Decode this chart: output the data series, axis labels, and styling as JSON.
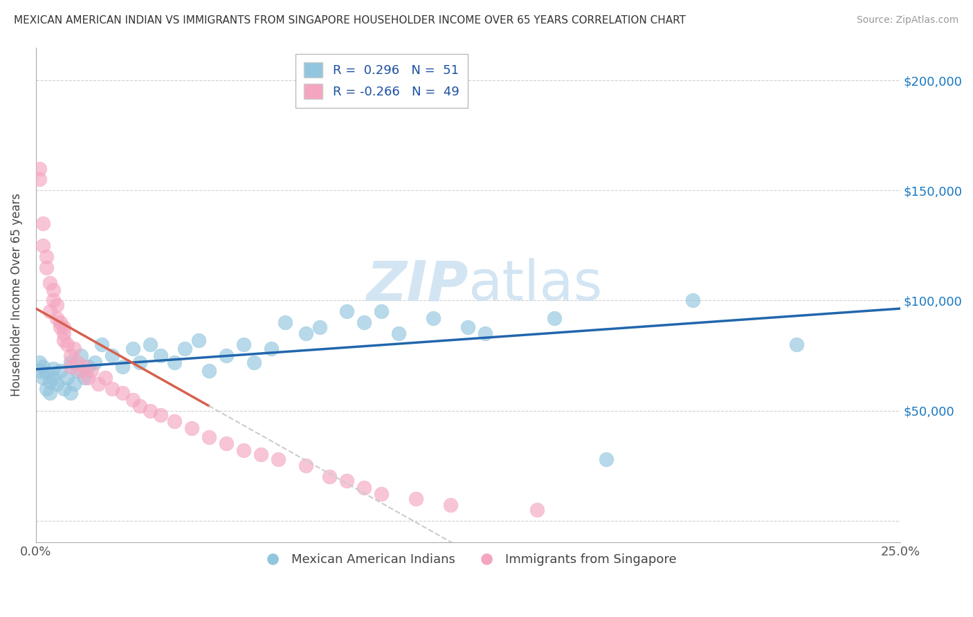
{
  "title": "MEXICAN AMERICAN INDIAN VS IMMIGRANTS FROM SINGAPORE HOUSEHOLDER INCOME OVER 65 YEARS CORRELATION CHART",
  "source": "Source: ZipAtlas.com",
  "ylabel": "Householder Income Over 65 years",
  "xmin": 0.0,
  "xmax": 0.25,
  "ymin": -10000,
  "ymax": 215000,
  "yticks": [
    0,
    50000,
    100000,
    150000,
    200000
  ],
  "ytick_labels": [
    "",
    "$50,000",
    "$100,000",
    "$150,000",
    "$200,000"
  ],
  "legend_blue_r": "0.296",
  "legend_blue_n": "51",
  "legend_pink_r": "-0.266",
  "legend_pink_n": "49",
  "legend1_label": "Mexican American Indians",
  "legend2_label": "Immigrants from Singapore",
  "blue_color": "#92c5de",
  "pink_color": "#f4a6c0",
  "blue_line_color": "#2166ac",
  "pink_line_color": "#d6604d",
  "pink_dash_color": "#cccccc",
  "watermark_color": "#c8dff0",
  "blue_scatter_x": [
    0.001,
    0.001,
    0.002,
    0.002,
    0.003,
    0.003,
    0.004,
    0.004,
    0.005,
    0.005,
    0.006,
    0.007,
    0.008,
    0.009,
    0.01,
    0.01,
    0.011,
    0.012,
    0.013,
    0.014,
    0.015,
    0.017,
    0.019,
    0.022,
    0.025,
    0.028,
    0.03,
    0.033,
    0.036,
    0.04,
    0.043,
    0.047,
    0.05,
    0.055,
    0.06,
    0.063,
    0.068,
    0.072,
    0.078,
    0.082,
    0.09,
    0.095,
    0.1,
    0.105,
    0.115,
    0.125,
    0.13,
    0.15,
    0.165,
    0.19,
    0.22
  ],
  "blue_scatter_y": [
    68000,
    72000,
    65000,
    70000,
    60000,
    67000,
    58000,
    63000,
    65000,
    69000,
    62000,
    68000,
    60000,
    65000,
    72000,
    58000,
    62000,
    68000,
    75000,
    65000,
    70000,
    72000,
    80000,
    75000,
    70000,
    78000,
    72000,
    80000,
    75000,
    72000,
    78000,
    82000,
    68000,
    75000,
    80000,
    72000,
    78000,
    90000,
    85000,
    88000,
    95000,
    90000,
    95000,
    85000,
    92000,
    88000,
    85000,
    92000,
    28000,
    100000,
    80000
  ],
  "pink_scatter_x": [
    0.001,
    0.001,
    0.002,
    0.002,
    0.003,
    0.003,
    0.004,
    0.005,
    0.005,
    0.006,
    0.006,
    0.007,
    0.007,
    0.008,
    0.008,
    0.009,
    0.01,
    0.01,
    0.011,
    0.012,
    0.013,
    0.014,
    0.015,
    0.016,
    0.018,
    0.02,
    0.022,
    0.025,
    0.028,
    0.03,
    0.033,
    0.036,
    0.04,
    0.045,
    0.05,
    0.055,
    0.06,
    0.065,
    0.07,
    0.078,
    0.085,
    0.09,
    0.095,
    0.1,
    0.11,
    0.12,
    0.145,
    0.008,
    0.004
  ],
  "pink_scatter_y": [
    155000,
    160000,
    135000,
    125000,
    120000,
    115000,
    108000,
    105000,
    100000,
    98000,
    92000,
    90000,
    88000,
    85000,
    82000,
    80000,
    75000,
    70000,
    78000,
    72000,
    68000,
    70000,
    65000,
    68000,
    62000,
    65000,
    60000,
    58000,
    55000,
    52000,
    50000,
    48000,
    45000,
    42000,
    38000,
    35000,
    32000,
    30000,
    28000,
    25000,
    20000,
    18000,
    15000,
    12000,
    10000,
    7000,
    5000,
    88000,
    95000
  ]
}
